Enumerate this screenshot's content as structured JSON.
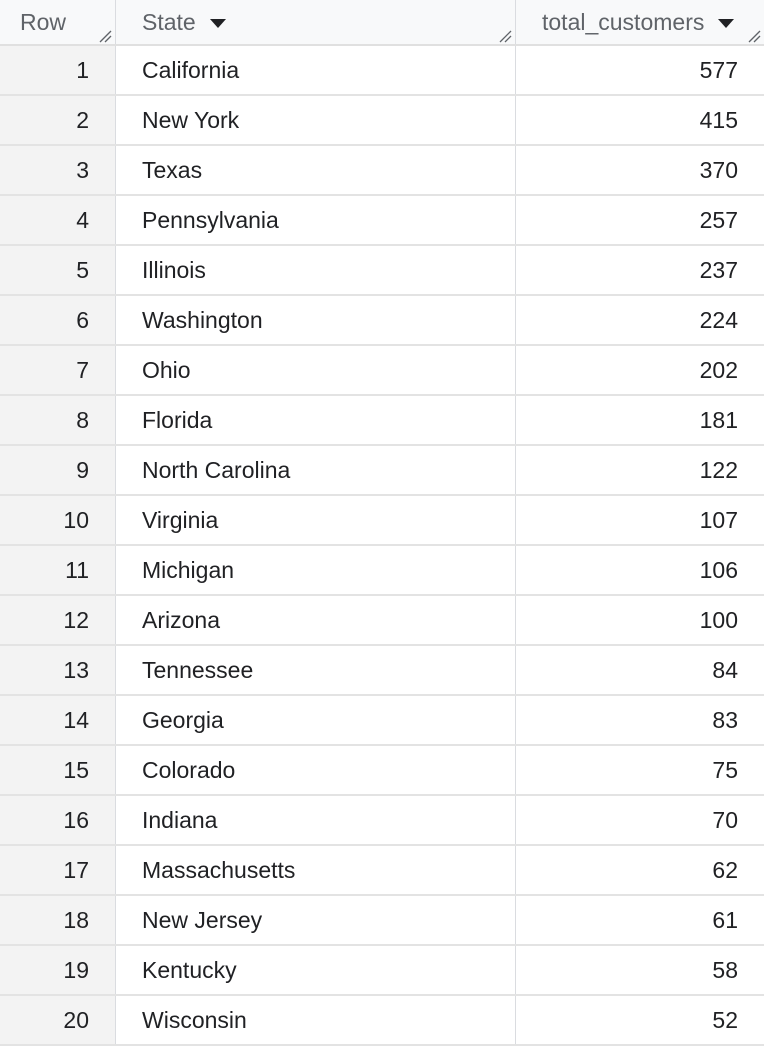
{
  "columns": {
    "row": "Row",
    "state": "State",
    "total": "total_customers"
  },
  "icons": {
    "sort": "sort-down-icon",
    "resize": "column-resize-icon"
  },
  "rows": [
    {
      "row": "1",
      "state": "California",
      "total": "577"
    },
    {
      "row": "2",
      "state": "New York",
      "total": "415"
    },
    {
      "row": "3",
      "state": "Texas",
      "total": "370"
    },
    {
      "row": "4",
      "state": "Pennsylvania",
      "total": "257"
    },
    {
      "row": "5",
      "state": "Illinois",
      "total": "237"
    },
    {
      "row": "6",
      "state": "Washington",
      "total": "224"
    },
    {
      "row": "7",
      "state": "Ohio",
      "total": "202"
    },
    {
      "row": "8",
      "state": "Florida",
      "total": "181"
    },
    {
      "row": "9",
      "state": "North Carolina",
      "total": "122"
    },
    {
      "row": "10",
      "state": "Virginia",
      "total": "107"
    },
    {
      "row": "11",
      "state": "Michigan",
      "total": "106"
    },
    {
      "row": "12",
      "state": "Arizona",
      "total": "100"
    },
    {
      "row": "13",
      "state": "Tennessee",
      "total": "84"
    },
    {
      "row": "14",
      "state": "Georgia",
      "total": "83"
    },
    {
      "row": "15",
      "state": "Colorado",
      "total": "75"
    },
    {
      "row": "16",
      "state": "Indiana",
      "total": "70"
    },
    {
      "row": "17",
      "state": "Massachusetts",
      "total": "62"
    },
    {
      "row": "18",
      "state": "New Jersey",
      "total": "61"
    },
    {
      "row": "19",
      "state": "Kentucky",
      "total": "58"
    },
    {
      "row": "20",
      "state": "Wisconsin",
      "total": "52"
    }
  ]
}
